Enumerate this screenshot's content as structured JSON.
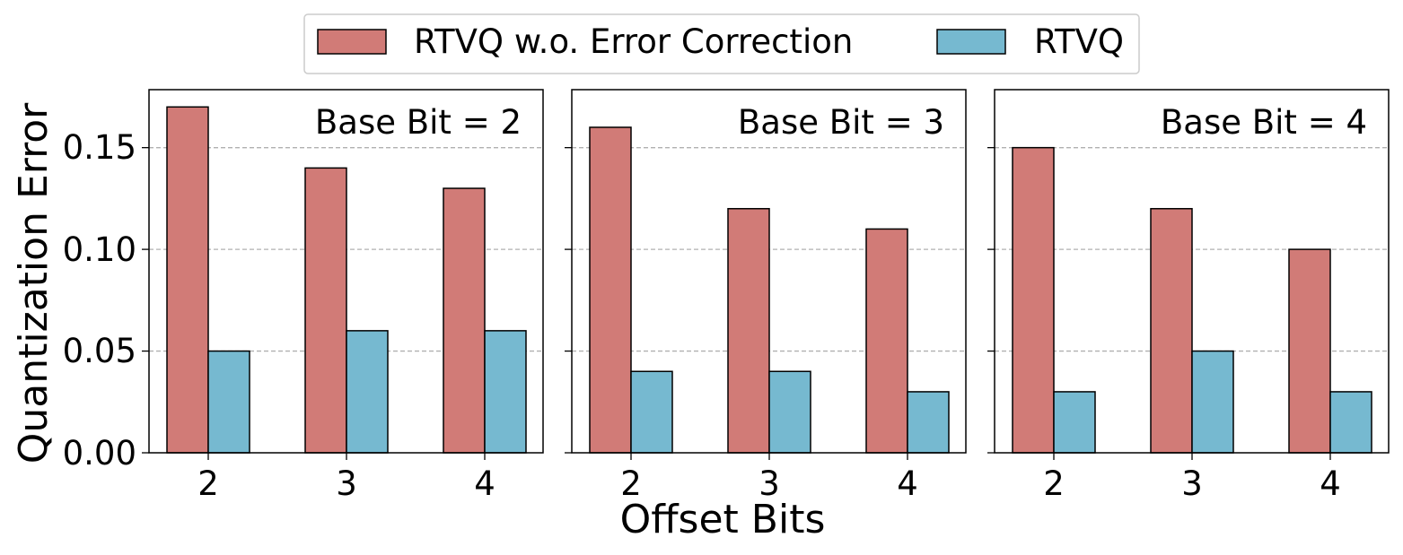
{
  "figure": {
    "xlabel": "Offset Bits",
    "ylabel": "Quantization Error"
  },
  "legend": {
    "placement": "top-center",
    "items": [
      {
        "label": "RTVQ w.o. Error Correction",
        "color": "#d17b77"
      },
      {
        "label": "RTVQ",
        "color": "#76b9d0"
      }
    ]
  },
  "y_ticks": [
    "0.00",
    "0.05",
    "0.10",
    "0.15"
  ],
  "chart_data": [
    {
      "type": "bar",
      "panel_label": "Base Bit = 2",
      "categories": [
        "2",
        "3",
        "4"
      ],
      "series": [
        {
          "name": "RTVQ w.o. Error Correction",
          "values": [
            0.17,
            0.14,
            0.13
          ]
        },
        {
          "name": "RTVQ",
          "values": [
            0.05,
            0.06,
            0.06
          ]
        }
      ],
      "xlabel": "Offset Bits",
      "ylabel": "Quantization Error",
      "ylim": [
        0,
        0.1785
      ],
      "yticks": [
        0.0,
        0.05,
        0.1,
        0.15
      ],
      "grid": "y dashed"
    },
    {
      "type": "bar",
      "panel_label": "Base Bit = 3",
      "categories": [
        "2",
        "3",
        "4"
      ],
      "series": [
        {
          "name": "RTVQ w.o. Error Correction",
          "values": [
            0.16,
            0.12,
            0.11
          ]
        },
        {
          "name": "RTVQ",
          "values": [
            0.04,
            0.04,
            0.03
          ]
        }
      ],
      "xlabel": "Offset Bits",
      "ylim": [
        0,
        0.1785
      ],
      "yticks": [
        0.0,
        0.05,
        0.1,
        0.15
      ],
      "grid": "y dashed"
    },
    {
      "type": "bar",
      "panel_label": "Base Bit = 4",
      "categories": [
        "2",
        "3",
        "4"
      ],
      "series": [
        {
          "name": "RTVQ w.o. Error Correction",
          "values": [
            0.15,
            0.12,
            0.1
          ]
        },
        {
          "name": "RTVQ",
          "values": [
            0.03,
            0.05,
            0.03
          ]
        }
      ],
      "xlabel": "Offset Bits",
      "ylim": [
        0,
        0.1785
      ],
      "yticks": [
        0.0,
        0.05,
        0.1,
        0.15
      ],
      "grid": "y dashed"
    }
  ]
}
